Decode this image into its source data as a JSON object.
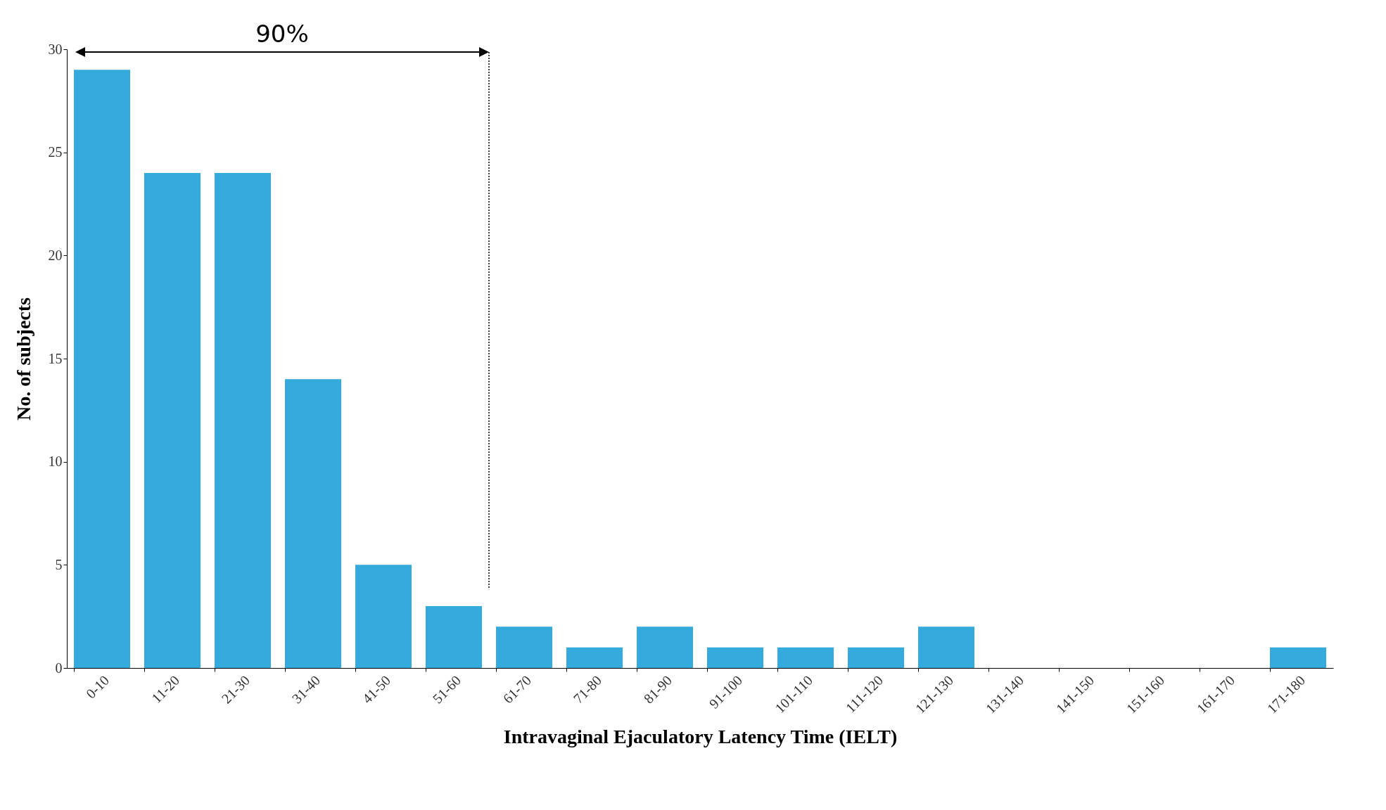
{
  "chart_data": {
    "type": "bar",
    "xlabel": "Intravaginal Ejaculatory Latency Time (IELT)",
    "ylabel": "No. of subjects",
    "categories": [
      "0-10",
      "11-20",
      "21-30",
      "31-40",
      "41-50",
      "51-60",
      "61-70",
      "71-80",
      "81-90",
      "91-100",
      "101-110",
      "111-120",
      "121-130",
      "131-140",
      "141-150",
      "151-160",
      "161-170",
      "171-180"
    ],
    "values": [
      29,
      24,
      24,
      14,
      5,
      3,
      2,
      1,
      2,
      1,
      1,
      1,
      2,
      0,
      0,
      0,
      0,
      1
    ],
    "color": "#35aadd",
    "ylim": [
      0,
      30
    ],
    "yticks": [
      0,
      5,
      10,
      15,
      20,
      25,
      30
    ],
    "grid": false,
    "annotations": [
      "90%"
    ]
  }
}
